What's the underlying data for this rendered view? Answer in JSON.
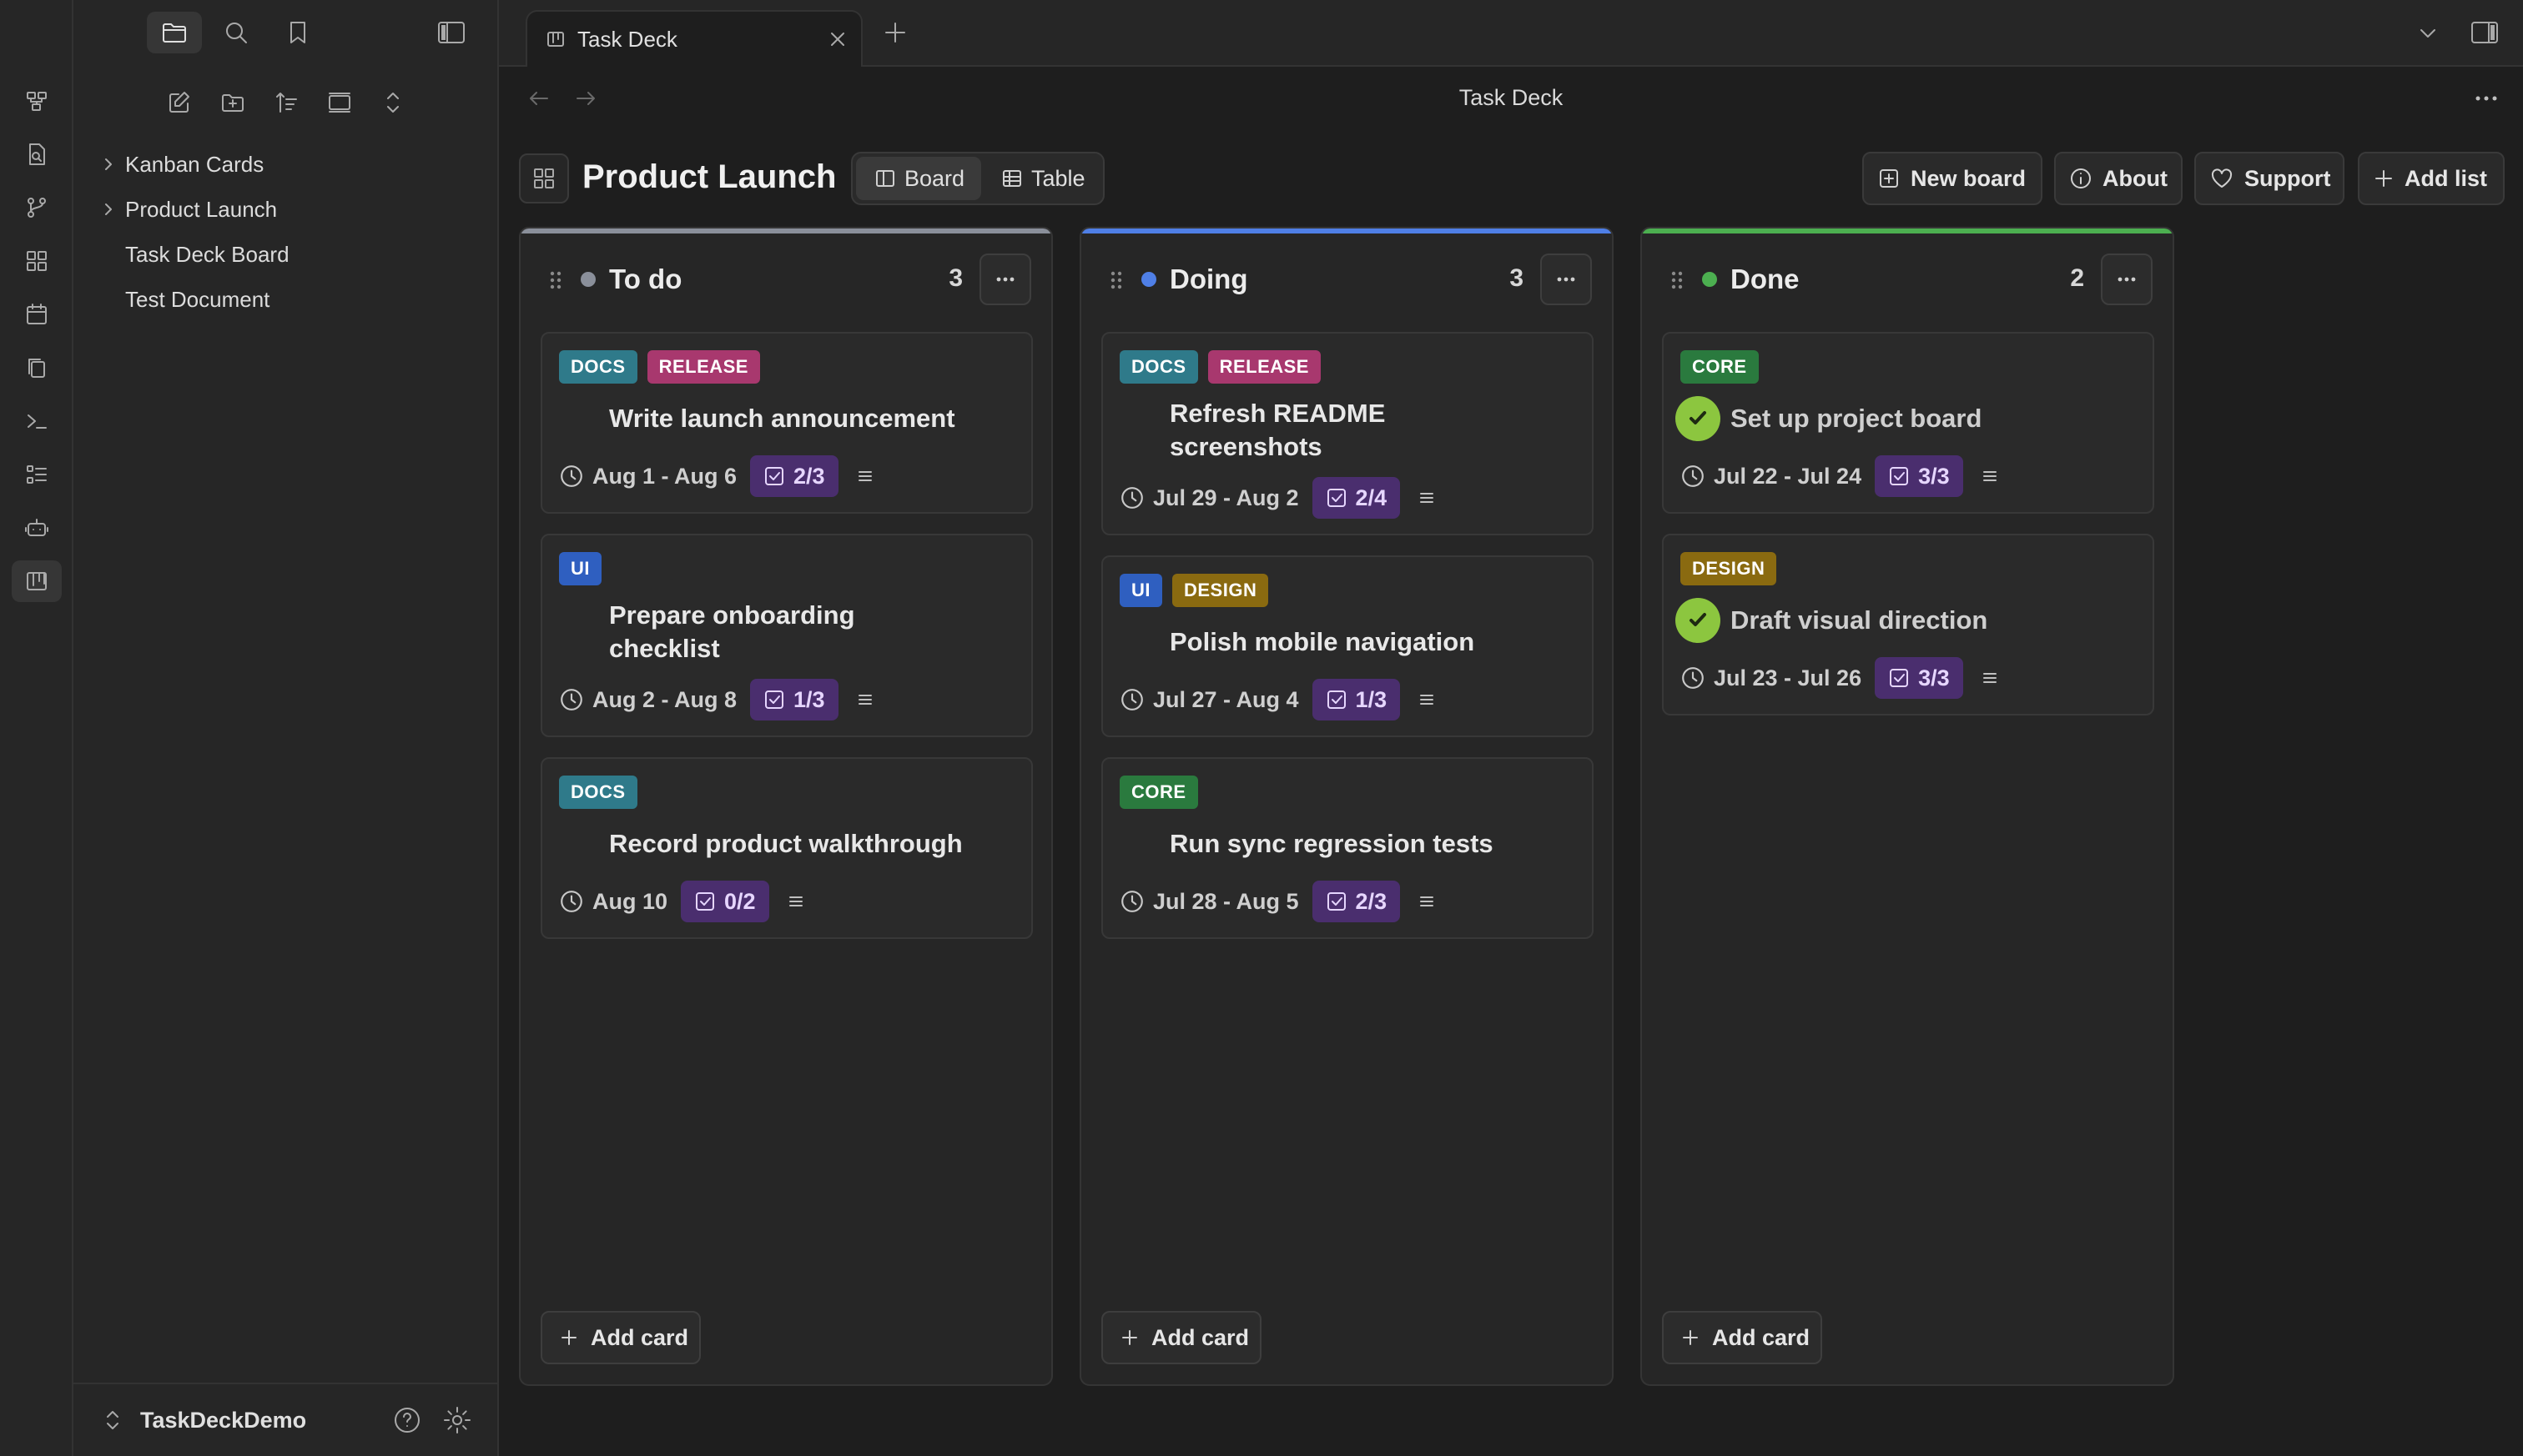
{
  "colors": {
    "todo_dot": "#8a8f9a",
    "doing_dot": "#4f7fe6",
    "done_dot": "#4caf50",
    "todo_accent": "#8a8f9a",
    "doing_accent": "#4f7fe6",
    "done_accent": "#4caf50",
    "tag_docs": "#2f7a8a",
    "tag_release": "#a8386e",
    "tag_ui": "#2f5fc0",
    "tag_design": "#8a6a10",
    "tag_core": "#2a7a3e",
    "progress_bg": "#4a2e6e"
  },
  "sidebar": {
    "tree": [
      {
        "label": "Kanban Cards",
        "folder": true
      },
      {
        "label": "Product Launch",
        "folder": true
      },
      {
        "label": "Task Deck Board",
        "folder": false
      },
      {
        "label": "Test Document",
        "folder": false
      }
    ],
    "vault_name": "TaskDeckDemo"
  },
  "tab": {
    "title": "Task Deck"
  },
  "header": {
    "title": "Task Deck"
  },
  "board": {
    "title": "Product Launch",
    "views": [
      "Board",
      "Table"
    ],
    "buttons": {
      "new_board": "New board",
      "about": "About",
      "support": "Support",
      "add_list": "Add list"
    }
  },
  "columns": [
    {
      "title": "To do",
      "count": "3",
      "add_label": "Add card",
      "cards": [
        {
          "tags": [
            "DOCS",
            "RELEASE"
          ],
          "title_lines": [
            "Write launch announcement"
          ],
          "date": "Aug 1 - Aug 6",
          "progress": "2/3",
          "done": false
        },
        {
          "tags": [
            "UI"
          ],
          "title_lines": [
            "Prepare onboarding",
            "checklist"
          ],
          "date": "Aug 2 - Aug 8",
          "progress": "1/3",
          "done": false
        },
        {
          "tags": [
            "DOCS"
          ],
          "title_lines": [
            "Record product walkthrough"
          ],
          "date": "Aug 10",
          "progress": "0/2",
          "done": false
        }
      ]
    },
    {
      "title": "Doing",
      "count": "3",
      "add_label": "Add card",
      "cards": [
        {
          "tags": [
            "DOCS",
            "RELEASE"
          ],
          "title_lines": [
            "Refresh README",
            "screenshots"
          ],
          "date": "Jul 29 - Aug 2",
          "progress": "2/4",
          "done": false
        },
        {
          "tags": [
            "UI",
            "DESIGN"
          ],
          "title_lines": [
            "Polish mobile navigation"
          ],
          "date": "Jul 27 - Aug 4",
          "progress": "1/3",
          "done": false
        },
        {
          "tags": [
            "CORE"
          ],
          "title_lines": [
            "Run sync regression tests"
          ],
          "date": "Jul 28 - Aug 5",
          "progress": "2/3",
          "done": false
        }
      ]
    },
    {
      "title": "Done",
      "count": "2",
      "add_label": "Add card",
      "cards": [
        {
          "tags": [
            "CORE"
          ],
          "title_lines": [
            "Set up project board"
          ],
          "date": "Jul 22 - Jul 24",
          "progress": "3/3",
          "done": true
        },
        {
          "tags": [
            "DESIGN"
          ],
          "title_lines": [
            "Draft visual direction"
          ],
          "date": "Jul 23 - Jul 26",
          "progress": "3/3",
          "done": true
        }
      ]
    }
  ]
}
